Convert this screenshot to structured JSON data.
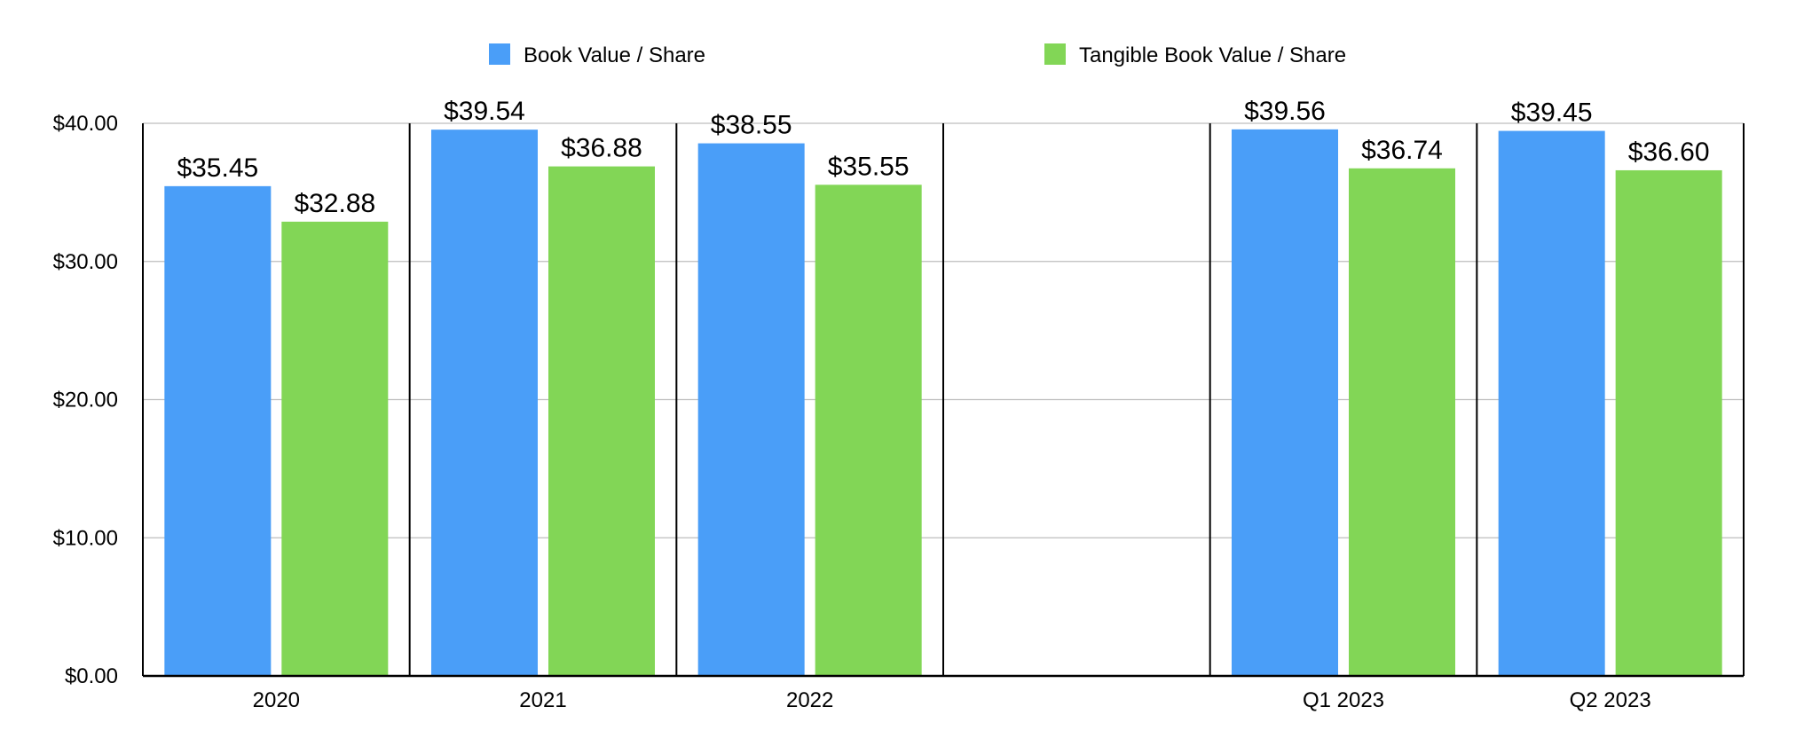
{
  "chart_data": {
    "type": "bar",
    "title": "",
    "xlabel": "",
    "ylabel": "",
    "categories": [
      "2020",
      "2021",
      "2022",
      "",
      "Q1 2023",
      "Q2 2023"
    ],
    "series": [
      {
        "name": "Book Value / Share",
        "color": "#4a9ef8",
        "values": [
          35.45,
          39.54,
          38.55,
          null,
          39.56,
          39.45
        ],
        "labels": [
          "$35.45",
          "$39.54",
          "$38.55",
          "",
          "$39.56",
          "$39.45"
        ]
      },
      {
        "name": "Tangible Book Value / Share",
        "color": "#82d656",
        "values": [
          32.88,
          36.88,
          35.55,
          null,
          36.74,
          36.6
        ],
        "labels": [
          "$32.88",
          "$36.88",
          "$35.55",
          "",
          "$36.74",
          "$36.60"
        ]
      }
    ],
    "ylim": [
      0,
      40
    ],
    "yticks": [
      0,
      10,
      20,
      30,
      40
    ],
    "ytick_labels": [
      "$0.00",
      "$10.00",
      "$20.00",
      "$30.00",
      "$40.00"
    ],
    "grid": true,
    "legend_position": "top-center"
  }
}
